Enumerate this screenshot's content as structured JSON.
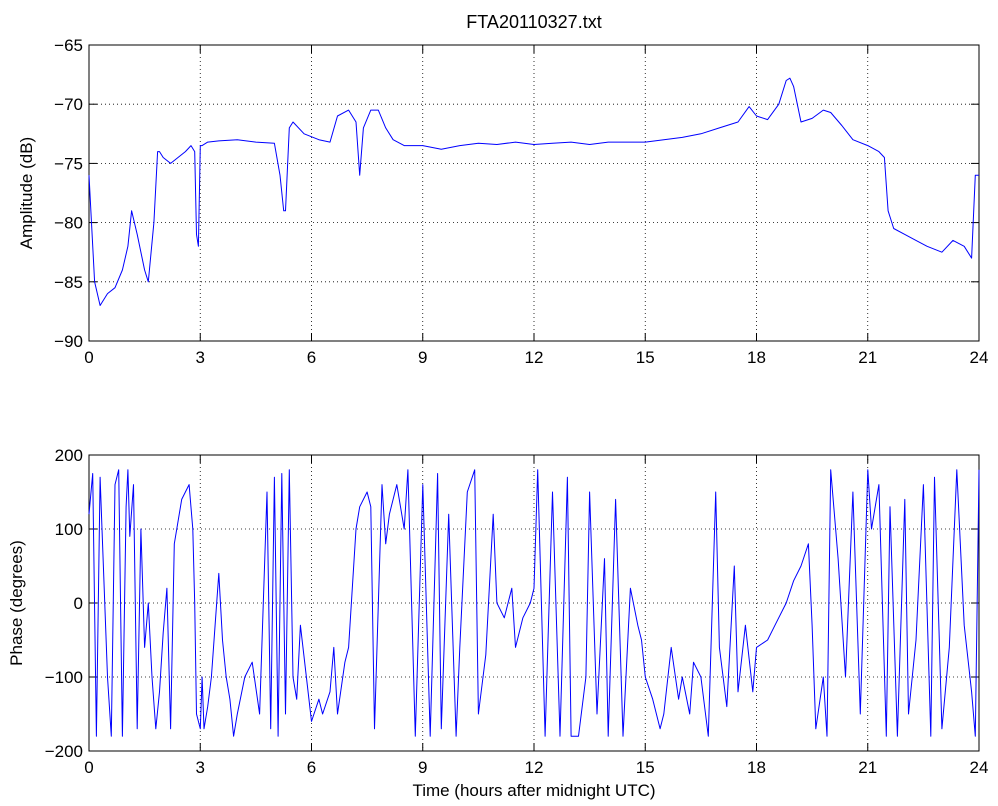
{
  "chart_data": [
    {
      "type": "line",
      "title": "FTA20110327.txt",
      "xlabel": "",
      "ylabel": "Amplitude (dB)",
      "xlim": [
        0,
        24
      ],
      "ylim": [
        -90,
        -65
      ],
      "xticks": [
        0,
        3,
        6,
        9,
        12,
        15,
        18,
        21,
        24
      ],
      "yticks": [
        -90,
        -85,
        -80,
        -75,
        -70,
        -65
      ],
      "grid": true,
      "color": "#0000ff",
      "series": [
        {
          "x": [
            0,
            0.15,
            0.3,
            0.5,
            0.7,
            0.9,
            1.05,
            1.15,
            1.3,
            1.5,
            1.6,
            1.75,
            1.85,
            1.9,
            2.0,
            2.2,
            2.4,
            2.6,
            2.75,
            2.85,
            2.9,
            2.95,
            3.0,
            3.05,
            3.2,
            3.5,
            4.0,
            4.5,
            5.0,
            5.15,
            5.25,
            5.3,
            5.4,
            5.5,
            5.8,
            6.2,
            6.5,
            6.7,
            7.0,
            7.2,
            7.3,
            7.4,
            7.6,
            7.8,
            8.0,
            8.2,
            8.5,
            9.0,
            9.5,
            10.0,
            10.5,
            11.0,
            11.5,
            12.0,
            12.5,
            13.0,
            13.5,
            14.0,
            14.5,
            15.0,
            15.5,
            16.0,
            16.5,
            17.0,
            17.5,
            17.8,
            18.0,
            18.3,
            18.6,
            18.8,
            18.9,
            19.0,
            19.2,
            19.5,
            19.8,
            20.0,
            20.3,
            20.6,
            21.0,
            21.3,
            21.45,
            21.55,
            21.7,
            22.0,
            22.3,
            22.6,
            23.0,
            23.3,
            23.6,
            23.8,
            23.9,
            24.0
          ],
          "values": [
            -76,
            -85,
            -87,
            -86,
            -85.5,
            -84,
            -82,
            -79,
            -81,
            -84,
            -85,
            -80,
            -74,
            -74,
            -74.5,
            -75,
            -74.5,
            -74,
            -73.5,
            -74,
            -81,
            -82,
            -73.5,
            -73.5,
            -73.2,
            -73.1,
            -73.0,
            -73.2,
            -73.3,
            -76,
            -79,
            -79,
            -72,
            -71.5,
            -72.5,
            -73,
            -73.2,
            -71,
            -70.5,
            -71.5,
            -76,
            -72,
            -70.5,
            -70.5,
            -72,
            -73,
            -73.5,
            -73.5,
            -73.8,
            -73.5,
            -73.3,
            -73.4,
            -73.2,
            -73.4,
            -73.3,
            -73.2,
            -73.4,
            -73.2,
            -73.2,
            -73.2,
            -73.0,
            -72.8,
            -72.5,
            -72,
            -71.5,
            -70.2,
            -71,
            -71.3,
            -70,
            -68,
            -67.8,
            -68.5,
            -71.5,
            -71.2,
            -70.5,
            -70.7,
            -71.8,
            -73,
            -73.5,
            -74,
            -74.5,
            -79,
            -80.5,
            -81,
            -81.5,
            -82,
            -82.5,
            -81.5,
            -82,
            -83,
            -76,
            -76
          ]
        }
      ]
    },
    {
      "type": "line",
      "title": "",
      "xlabel": "Time (hours after midnight UTC)",
      "ylabel": "Phase (degrees)",
      "xlim": [
        0,
        24
      ],
      "ylim": [
        -200,
        200
      ],
      "xticks": [
        0,
        3,
        6,
        9,
        12,
        15,
        18,
        21,
        24
      ],
      "yticks": [
        -200,
        -100,
        0,
        100,
        200
      ],
      "grid": true,
      "color": "#0000ff",
      "series": [
        {
          "x": [
            0,
            0.1,
            0.2,
            0.3,
            0.35,
            0.5,
            0.6,
            0.7,
            0.8,
            0.9,
            1.0,
            1.05,
            1.1,
            1.2,
            1.3,
            1.4,
            1.5,
            1.6,
            1.7,
            1.8,
            1.9,
            2.0,
            2.1,
            2.2,
            2.3,
            2.5,
            2.7,
            2.8,
            2.85,
            2.9,
            3.0,
            3.05,
            3.1,
            3.2,
            3.3,
            3.4,
            3.5,
            3.6,
            3.7,
            3.8,
            3.9,
            4.0,
            4.2,
            4.4,
            4.6,
            4.8,
            4.9,
            5.0,
            5.1,
            5.2,
            5.3,
            5.4,
            5.5,
            5.6,
            5.7,
            6.0,
            6.2,
            6.3,
            6.5,
            6.6,
            6.7,
            6.9,
            7.0,
            7.2,
            7.3,
            7.5,
            7.6,
            7.7,
            7.9,
            8.0,
            8.1,
            8.3,
            8.5,
            8.6,
            8.8,
            9.0,
            9.2,
            9.4,
            9.5,
            9.7,
            9.9,
            10.0,
            10.2,
            10.4,
            10.5,
            10.7,
            10.9,
            11.0,
            11.2,
            11.4,
            11.5,
            11.7,
            11.9,
            12.0,
            12.1,
            12.3,
            12.5,
            12.7,
            12.9,
            13.0,
            13.2,
            13.4,
            13.5,
            13.7,
            13.9,
            14.0,
            14.2,
            14.4,
            14.6,
            14.8,
            14.9,
            15.0,
            15.2,
            15.4,
            15.5,
            15.7,
            15.9,
            16.0,
            16.2,
            16.3,
            16.5,
            16.7,
            16.9,
            17.0,
            17.2,
            17.4,
            17.5,
            17.7,
            17.9,
            18.0,
            18.3,
            18.5,
            18.8,
            19.0,
            19.2,
            19.4,
            19.5,
            19.6,
            19.8,
            19.9,
            20.0,
            20.2,
            20.4,
            20.6,
            20.8,
            21.0,
            21.1,
            21.3,
            21.5,
            21.6,
            21.8,
            22.0,
            22.1,
            22.3,
            22.5,
            22.7,
            22.8,
            23.0,
            23.2,
            23.4,
            23.6,
            23.8,
            23.9,
            24.0
          ],
          "values": [
            120,
            175,
            -180,
            170,
            100,
            -100,
            -180,
            160,
            180,
            -180,
            130,
            180,
            90,
            160,
            -170,
            100,
            -60,
            0,
            -100,
            -170,
            -120,
            -40,
            20,
            -170,
            80,
            140,
            160,
            100,
            0,
            -150,
            -170,
            -100,
            -170,
            -140,
            -100,
            -30,
            40,
            -50,
            -100,
            -130,
            -180,
            -150,
            -100,
            -80,
            -150,
            150,
            -170,
            170,
            -180,
            175,
            -150,
            180,
            -100,
            -130,
            -30,
            -160,
            -130,
            -150,
            -120,
            -60,
            -150,
            -80,
            -60,
            100,
            130,
            150,
            130,
            -170,
            160,
            80,
            120,
            160,
            100,
            180,
            -180,
            160,
            -180,
            175,
            -170,
            120,
            -180,
            -60,
            150,
            180,
            -150,
            -70,
            120,
            0,
            -20,
            20,
            -60,
            -20,
            0,
            20,
            180,
            -180,
            150,
            -180,
            170,
            -180,
            -180,
            -100,
            150,
            -150,
            60,
            -180,
            140,
            -180,
            20,
            -30,
            -50,
            -100,
            -130,
            -170,
            -150,
            -60,
            -130,
            -100,
            -150,
            -80,
            -100,
            -180,
            150,
            -60,
            -140,
            50,
            -120,
            -30,
            -120,
            -60,
            -50,
            -30,
            0,
            30,
            50,
            80,
            -30,
            -170,
            -100,
            -180,
            180,
            60,
            -100,
            150,
            -150,
            180,
            100,
            160,
            -180,
            130,
            -180,
            140,
            -150,
            -50,
            160,
            -180,
            170,
            -170,
            -60,
            180,
            -30,
            -120,
            -180,
            180
          ]
        }
      ]
    }
  ]
}
